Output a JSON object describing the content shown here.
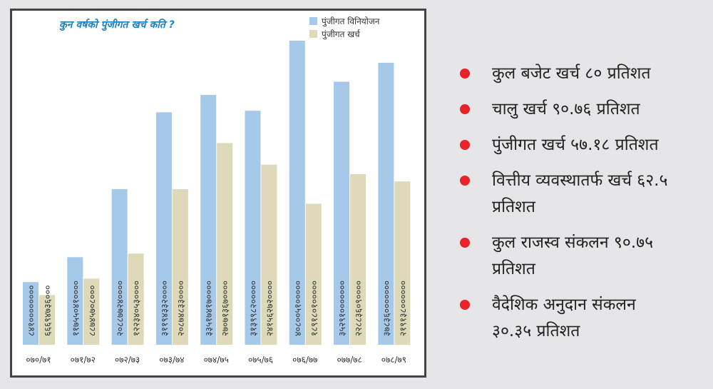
{
  "chart_data": {
    "type": "bar",
    "title": "कुन वर्षको पुंजीगत खर्च कति ?",
    "categories": [
      "०७०/७१",
      "०७१/७२",
      "०७२/७३",
      "०७३/७४",
      "०७४/७५",
      "०७५/७६",
      "०७६/७७",
      "०७७/७८",
      "०७८/७९"
    ],
    "series": [
      {
        "name": "पुंजीगत विनियोजन",
        "color": "#a6c8e9",
        "values": [
          84100000000,
          117550410000,
          208877240000,
          311943320000,
          335174170000,
          313998200000,
          408005100000,
          352910000000,
          378360000000
        ],
        "value_labels": [
          "८४१००००००००",
          "११७५५०४१००००",
          "२०८८७७२४००००",
          "३११९४३३२००००",
          "३३५१७४१७००००",
          "३१३९९८२०००००",
          "४०८००५१०००००",
          "३५२९१०००००००",
          "३७८३६०००००००"
        ]
      },
      {
        "name": "पुंजीगत खर्च",
        "color": "#ddd9b9",
        "values": [
          66694736000,
          88745708000,
          122340530000,
          208748330000,
          270713670000,
          241562720000,
          189180100000,
          228836090000,
          219138000000
        ],
        "value_labels": [
          "६६६९४७३६०००",
          "८८७४५७०८०००",
          "१२२३४०५३००००",
          "२०८७४८३३००००",
          "२७०७१३६७००००",
          "२४१५६२७२००००",
          "१८९१८०१०००००",
          "२२८८३६०९००००",
          "२१९१३८००००००"
        ]
      }
    ]
  },
  "notes": [
    "कुल बजेट खर्च ८० प्रतिशत",
    "चालु खर्च ९०.७६ प्रतिशत",
    "पुंजीगत खर्च ५७.१८ प्रतिशत",
    "वित्तीय व्यवस्थातर्फ खर्च ६२.५ प्रतिशत",
    "कुल राजस्व संकलन ९०.७५ प्रतिशत",
    "वैदेशिक अनुदान संकलन ३०.३५ प्रतिशत"
  ]
}
